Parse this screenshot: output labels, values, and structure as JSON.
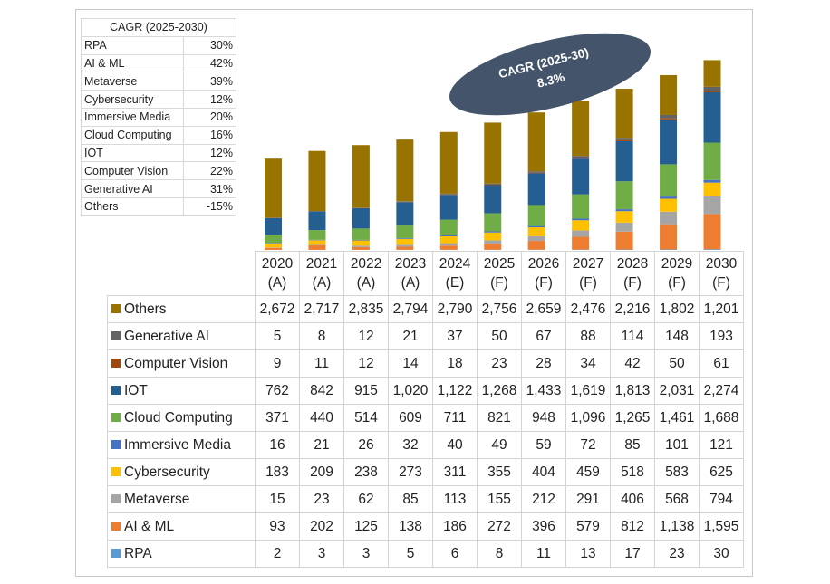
{
  "cagr_table": {
    "title": "CAGR (2025-2030)",
    "rows": [
      {
        "name": "RPA",
        "value": "30%"
      },
      {
        "name": "AI & ML",
        "value": "42%"
      },
      {
        "name": "Metaverse",
        "value": "39%"
      },
      {
        "name": "Cybersecurity",
        "value": "12%"
      },
      {
        "name": "Immersive Media",
        "value": "20%"
      },
      {
        "name": "Cloud Computing",
        "value": "16%"
      },
      {
        "name": "IOT",
        "value": "12%"
      },
      {
        "name": "Computer Vision",
        "value": "22%"
      },
      {
        "name": "Generative AI",
        "value": "31%"
      },
      {
        "name": "Others",
        "value": "-15%"
      }
    ]
  },
  "callout": {
    "line1": "CAGR (2025-30)",
    "line2": "8.3%",
    "color": "#44546a"
  },
  "chart_data": {
    "type": "bar",
    "stacked": true,
    "legend": "table-below",
    "categories": [
      "2020",
      "2021",
      "2022",
      "2023",
      "2024",
      "2025",
      "2026",
      "2027",
      "2028",
      "2029",
      "2030"
    ],
    "category_suffixes": [
      "(A)",
      "(A)",
      "(A)",
      "(A)",
      "(E)",
      "(F)",
      "(F)",
      "(F)",
      "(F)",
      "(F)",
      "(F)"
    ],
    "ylim": [
      0,
      8600
    ],
    "series": [
      {
        "name": "RPA",
        "color": "#5b9bd5",
        "values": [
          2,
          3,
          3,
          5,
          6,
          8,
          11,
          13,
          17,
          23,
          30
        ],
        "labels": [
          "2",
          "3",
          "3",
          "5",
          "6",
          "8",
          "11",
          "13",
          "17",
          "23",
          "30"
        ]
      },
      {
        "name": "AI & ML",
        "color": "#ed7d31",
        "values": [
          93,
          202,
          125,
          138,
          186,
          272,
          396,
          579,
          812,
          1138,
          1595
        ],
        "labels": [
          "93",
          "202",
          "125",
          "138",
          "186",
          "272",
          "396",
          "579",
          "812",
          "1,138",
          "1,595"
        ]
      },
      {
        "name": "Metaverse",
        "color": "#a5a5a5",
        "values": [
          15,
          23,
          62,
          85,
          113,
          155,
          212,
          291,
          406,
          568,
          794
        ],
        "labels": [
          "15",
          "23",
          "62",
          "85",
          "113",
          "155",
          "212",
          "291",
          "406",
          "568",
          "794"
        ]
      },
      {
        "name": "Cybersecurity",
        "color": "#ffc000",
        "values": [
          183,
          209,
          238,
          273,
          311,
          355,
          404,
          459,
          518,
          583,
          625
        ],
        "labels": [
          "183",
          "209",
          "238",
          "273",
          "311",
          "355",
          "404",
          "459",
          "518",
          "583",
          "625"
        ]
      },
      {
        "name": "Immersive Media",
        "color": "#4472c4",
        "values": [
          16,
          21,
          26,
          32,
          40,
          49,
          59,
          72,
          85,
          101,
          121
        ],
        "labels": [
          "16",
          "21",
          "26",
          "32",
          "40",
          "49",
          "59",
          "72",
          "85",
          "101",
          "121"
        ]
      },
      {
        "name": "Cloud Computing",
        "color": "#70ad47",
        "values": [
          371,
          440,
          514,
          609,
          711,
          821,
          948,
          1096,
          1265,
          1461,
          1688
        ],
        "labels": [
          "371",
          "440",
          "514",
          "609",
          "711",
          "821",
          "948",
          "1,096",
          "1,265",
          "1,461",
          "1,688"
        ]
      },
      {
        "name": "IOT",
        "color": "#255e91",
        "values": [
          762,
          842,
          915,
          1020,
          1122,
          1268,
          1433,
          1619,
          1813,
          2031,
          2274
        ],
        "labels": [
          "762",
          "842",
          "915",
          "1,020",
          "1,122",
          "1,268",
          "1,433",
          "1,619",
          "1,813",
          "2,031",
          "2,274"
        ]
      },
      {
        "name": "Computer Vision",
        "color": "#9e480e",
        "values": [
          9,
          11,
          12,
          14,
          18,
          23,
          28,
          34,
          42,
          50,
          61
        ],
        "labels": [
          "9",
          "11",
          "12",
          "14",
          "18",
          "23",
          "28",
          "34",
          "42",
          "50",
          "61"
        ]
      },
      {
        "name": "Generative AI",
        "color": "#636363",
        "values": [
          5,
          8,
          12,
          21,
          37,
          50,
          67,
          88,
          114,
          148,
          193
        ],
        "labels": [
          "5",
          "8",
          "12",
          "21",
          "37",
          "50",
          "67",
          "88",
          "114",
          "148",
          "193"
        ]
      },
      {
        "name": "Others",
        "color": "#997300",
        "values": [
          2672,
          2717,
          2835,
          2794,
          2790,
          2756,
          2659,
          2476,
          2216,
          1802,
          1201
        ],
        "labels": [
          "2,672",
          "2,717",
          "2,835",
          "2,794",
          "2,790",
          "2,756",
          "2,659",
          "2,476",
          "2,216",
          "1,802",
          "1,201"
        ]
      }
    ]
  }
}
